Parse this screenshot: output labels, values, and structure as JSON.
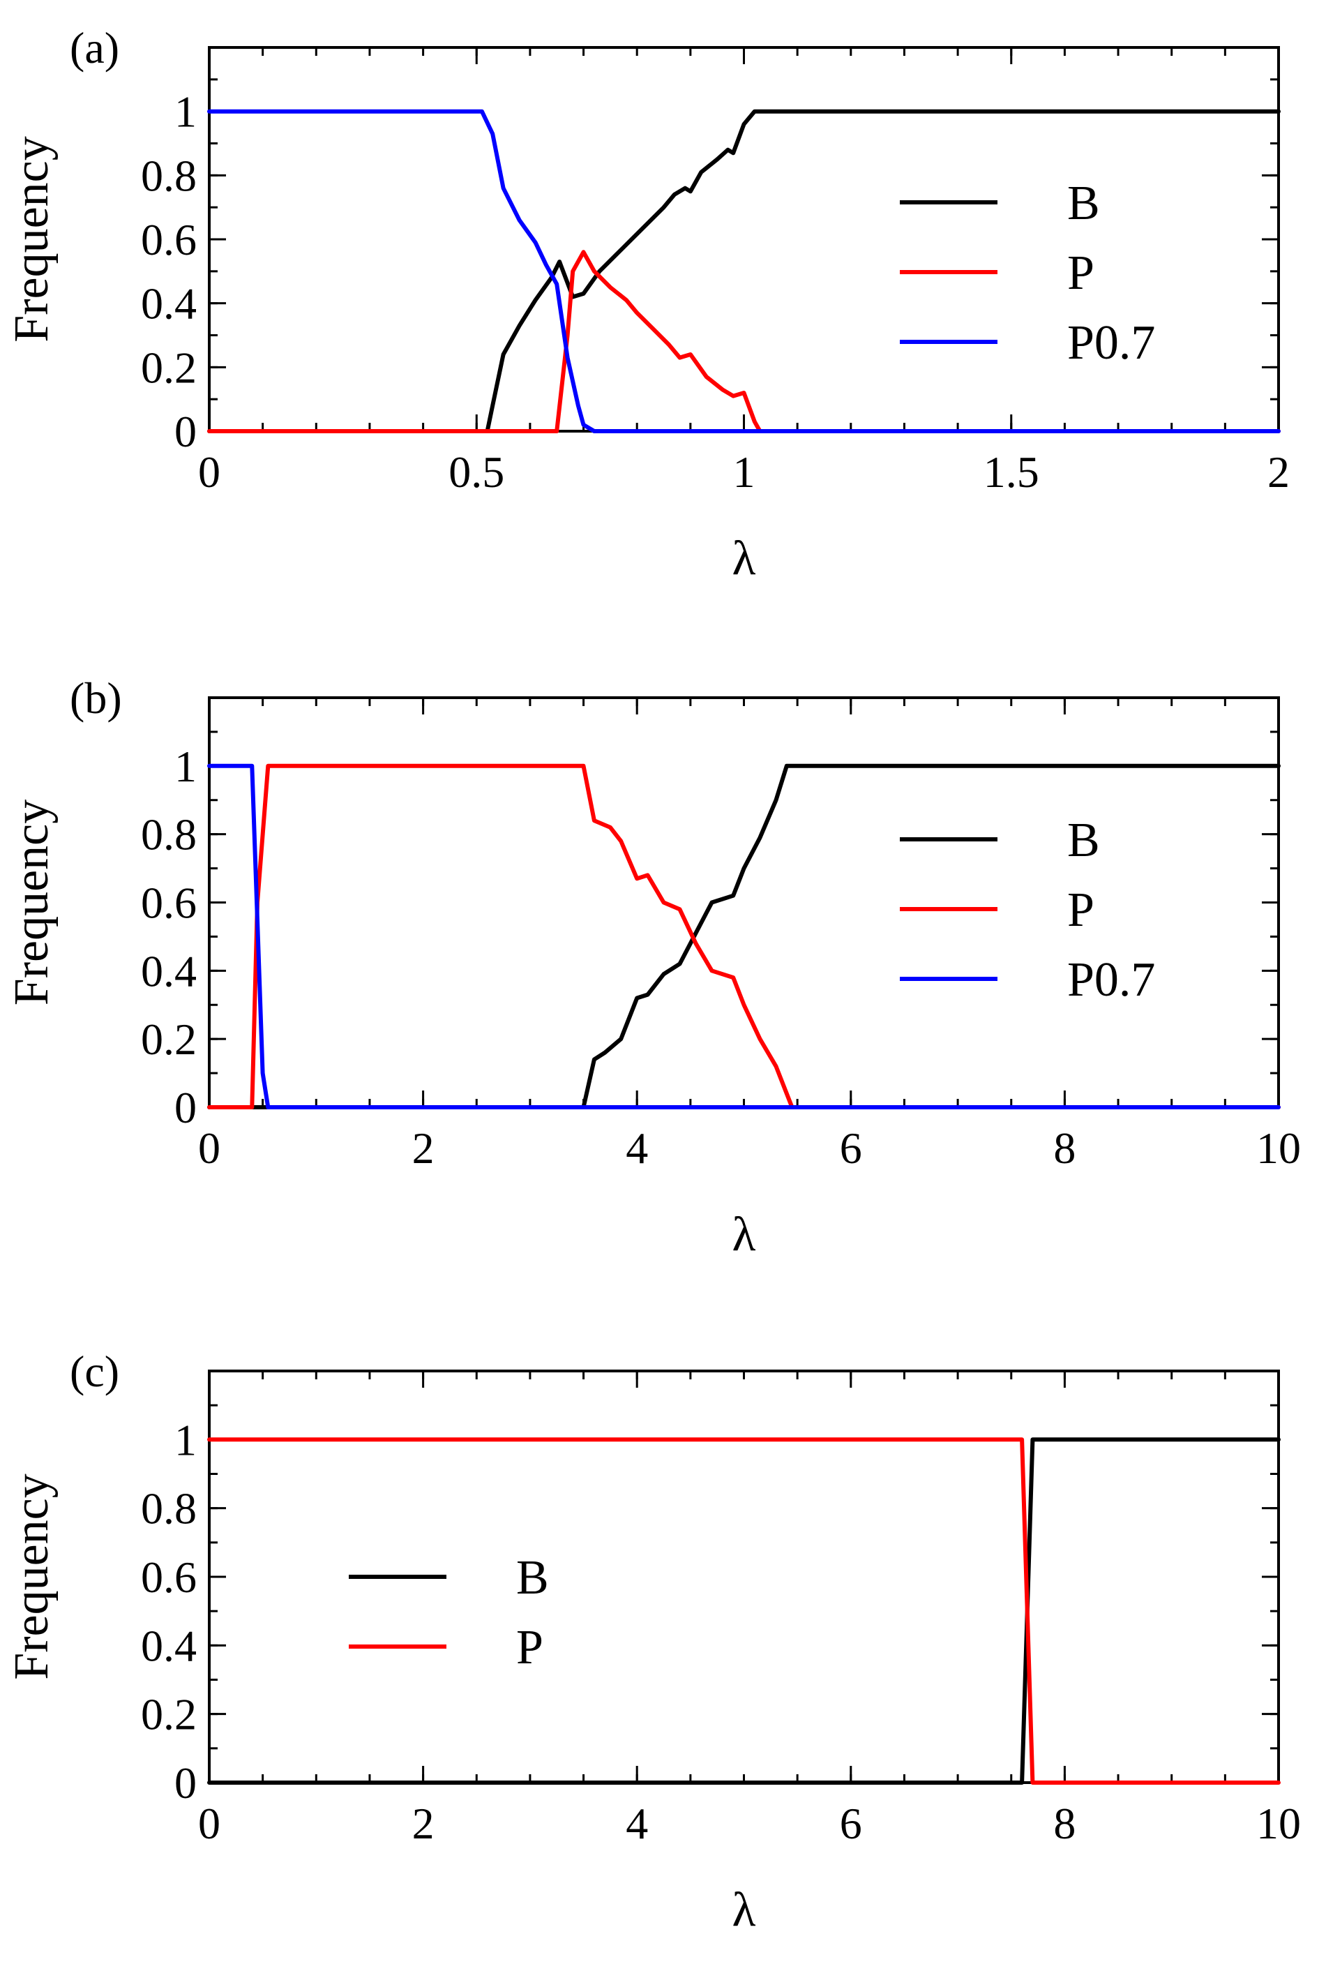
{
  "chart_data": [
    {
      "type": "line",
      "panel_label": "(a)",
      "xlabel": "λ",
      "ylabel": "Frequency",
      "xlim": [
        0,
        2
      ],
      "ylim": [
        0,
        1.2
      ],
      "xticks": [
        0,
        0.5,
        1,
        1.5,
        2
      ],
      "xtick_labels": [
        "0",
        "0.5",
        "1",
        "1.5",
        "2"
      ],
      "xminor_step": 0.1,
      "yticks": [
        0,
        0.2,
        0.4,
        0.6,
        0.8,
        1
      ],
      "ytick_labels": [
        "0",
        "0.2",
        "0.4",
        "0.6",
        "0.8",
        "1"
      ],
      "yminor_step": 0.1,
      "legend_position": "right-center",
      "series": [
        {
          "name": "B",
          "color": "#000000",
          "x": [
            0,
            0.52,
            0.53,
            0.55,
            0.58,
            0.61,
            0.64,
            0.655,
            0.68,
            0.7,
            0.73,
            0.76,
            0.79,
            0.82,
            0.85,
            0.87,
            0.89,
            0.9,
            0.92,
            0.95,
            0.97,
            0.98,
            1.0,
            1.02,
            1.05,
            2.0
          ],
          "y": [
            0,
            0,
            0.08,
            0.24,
            0.33,
            0.41,
            0.48,
            0.53,
            0.42,
            0.43,
            0.5,
            0.55,
            0.6,
            0.65,
            0.7,
            0.74,
            0.76,
            0.75,
            0.81,
            0.85,
            0.88,
            0.87,
            0.96,
            1.0,
            1.0,
            1.0
          ]
        },
        {
          "name": "P",
          "color": "#ff0000",
          "x": [
            0,
            0.65,
            0.67,
            0.68,
            0.7,
            0.72,
            0.75,
            0.78,
            0.8,
            0.83,
            0.86,
            0.88,
            0.9,
            0.93,
            0.96,
            0.98,
            1.0,
            1.02,
            1.03,
            2.0
          ],
          "y": [
            0,
            0,
            0.3,
            0.5,
            0.56,
            0.5,
            0.45,
            0.41,
            0.37,
            0.32,
            0.27,
            0.23,
            0.24,
            0.17,
            0.13,
            0.11,
            0.12,
            0.03,
            0,
            0
          ]
        },
        {
          "name": "P0.7",
          "color": "#0000ff",
          "x": [
            0,
            0.51,
            0.53,
            0.55,
            0.58,
            0.61,
            0.63,
            0.65,
            0.67,
            0.69,
            0.7,
            0.72,
            2.0
          ],
          "y": [
            1,
            1,
            0.93,
            0.76,
            0.66,
            0.59,
            0.52,
            0.46,
            0.23,
            0.08,
            0.02,
            0,
            0
          ]
        }
      ]
    },
    {
      "type": "line",
      "panel_label": "(b)",
      "xlabel": "λ",
      "ylabel": "Frequency",
      "xlim": [
        0,
        10
      ],
      "ylim": [
        0,
        1.2
      ],
      "xticks": [
        0,
        2,
        4,
        6,
        8,
        10
      ],
      "xtick_labels": [
        "0",
        "2",
        "4",
        "6",
        "8",
        "10"
      ],
      "xminor_step": 0.5,
      "yticks": [
        0,
        0.2,
        0.4,
        0.6,
        0.8,
        1
      ],
      "ytick_labels": [
        "0",
        "0.2",
        "0.4",
        "0.6",
        "0.8",
        "1"
      ],
      "yminor_step": 0.1,
      "legend_position": "right-center",
      "series": [
        {
          "name": "B",
          "color": "#000000",
          "x": [
            0,
            3.5,
            3.6,
            3.7,
            3.85,
            4.0,
            4.1,
            4.25,
            4.4,
            4.55,
            4.7,
            4.9,
            5.0,
            5.15,
            5.3,
            5.4,
            5.5,
            10.0
          ],
          "y": [
            0,
            0,
            0.14,
            0.16,
            0.2,
            0.32,
            0.33,
            0.39,
            0.42,
            0.51,
            0.6,
            0.62,
            0.7,
            0.79,
            0.9,
            1.0,
            1.0,
            1.0
          ]
        },
        {
          "name": "P",
          "color": "#ff0000",
          "x": [
            0,
            0.4,
            0.45,
            0.55,
            3.5,
            3.6,
            3.75,
            3.85,
            4.0,
            4.1,
            4.25,
            4.4,
            4.55,
            4.7,
            4.9,
            5.0,
            5.15,
            5.3,
            5.4,
            5.45,
            10.0
          ],
          "y": [
            0,
            0,
            0.6,
            1.0,
            1.0,
            0.84,
            0.82,
            0.78,
            0.67,
            0.68,
            0.6,
            0.58,
            0.48,
            0.4,
            0.38,
            0.3,
            0.2,
            0.12,
            0.04,
            0,
            0
          ]
        },
        {
          "name": "P0.7",
          "color": "#0000ff",
          "x": [
            0,
            0.4,
            0.5,
            0.55,
            10.0
          ],
          "y": [
            1,
            1,
            0.1,
            0,
            0
          ]
        }
      ]
    },
    {
      "type": "line",
      "panel_label": "(c)",
      "xlabel": "λ",
      "ylabel": "Frequency",
      "xlim": [
        0,
        10
      ],
      "ylim": [
        0,
        1.2
      ],
      "xticks": [
        0,
        2,
        4,
        6,
        8,
        10
      ],
      "xtick_labels": [
        "0",
        "2",
        "4",
        "6",
        "8",
        "10"
      ],
      "xminor_step": 0.5,
      "yticks": [
        0,
        0.2,
        0.4,
        0.6,
        0.8,
        1
      ],
      "ytick_labels": [
        "0",
        "0.2",
        "0.4",
        "0.6",
        "0.8",
        "1"
      ],
      "yminor_step": 0.1,
      "legend_position": "left-center",
      "series": [
        {
          "name": "B",
          "color": "#000000",
          "x": [
            0,
            7.6,
            7.7,
            10.0
          ],
          "y": [
            0,
            0,
            1.0,
            1.0
          ]
        },
        {
          "name": "P",
          "color": "#ff0000",
          "x": [
            0,
            7.6,
            7.7,
            10.0
          ],
          "y": [
            1.0,
            1.0,
            0,
            0
          ]
        }
      ]
    }
  ]
}
